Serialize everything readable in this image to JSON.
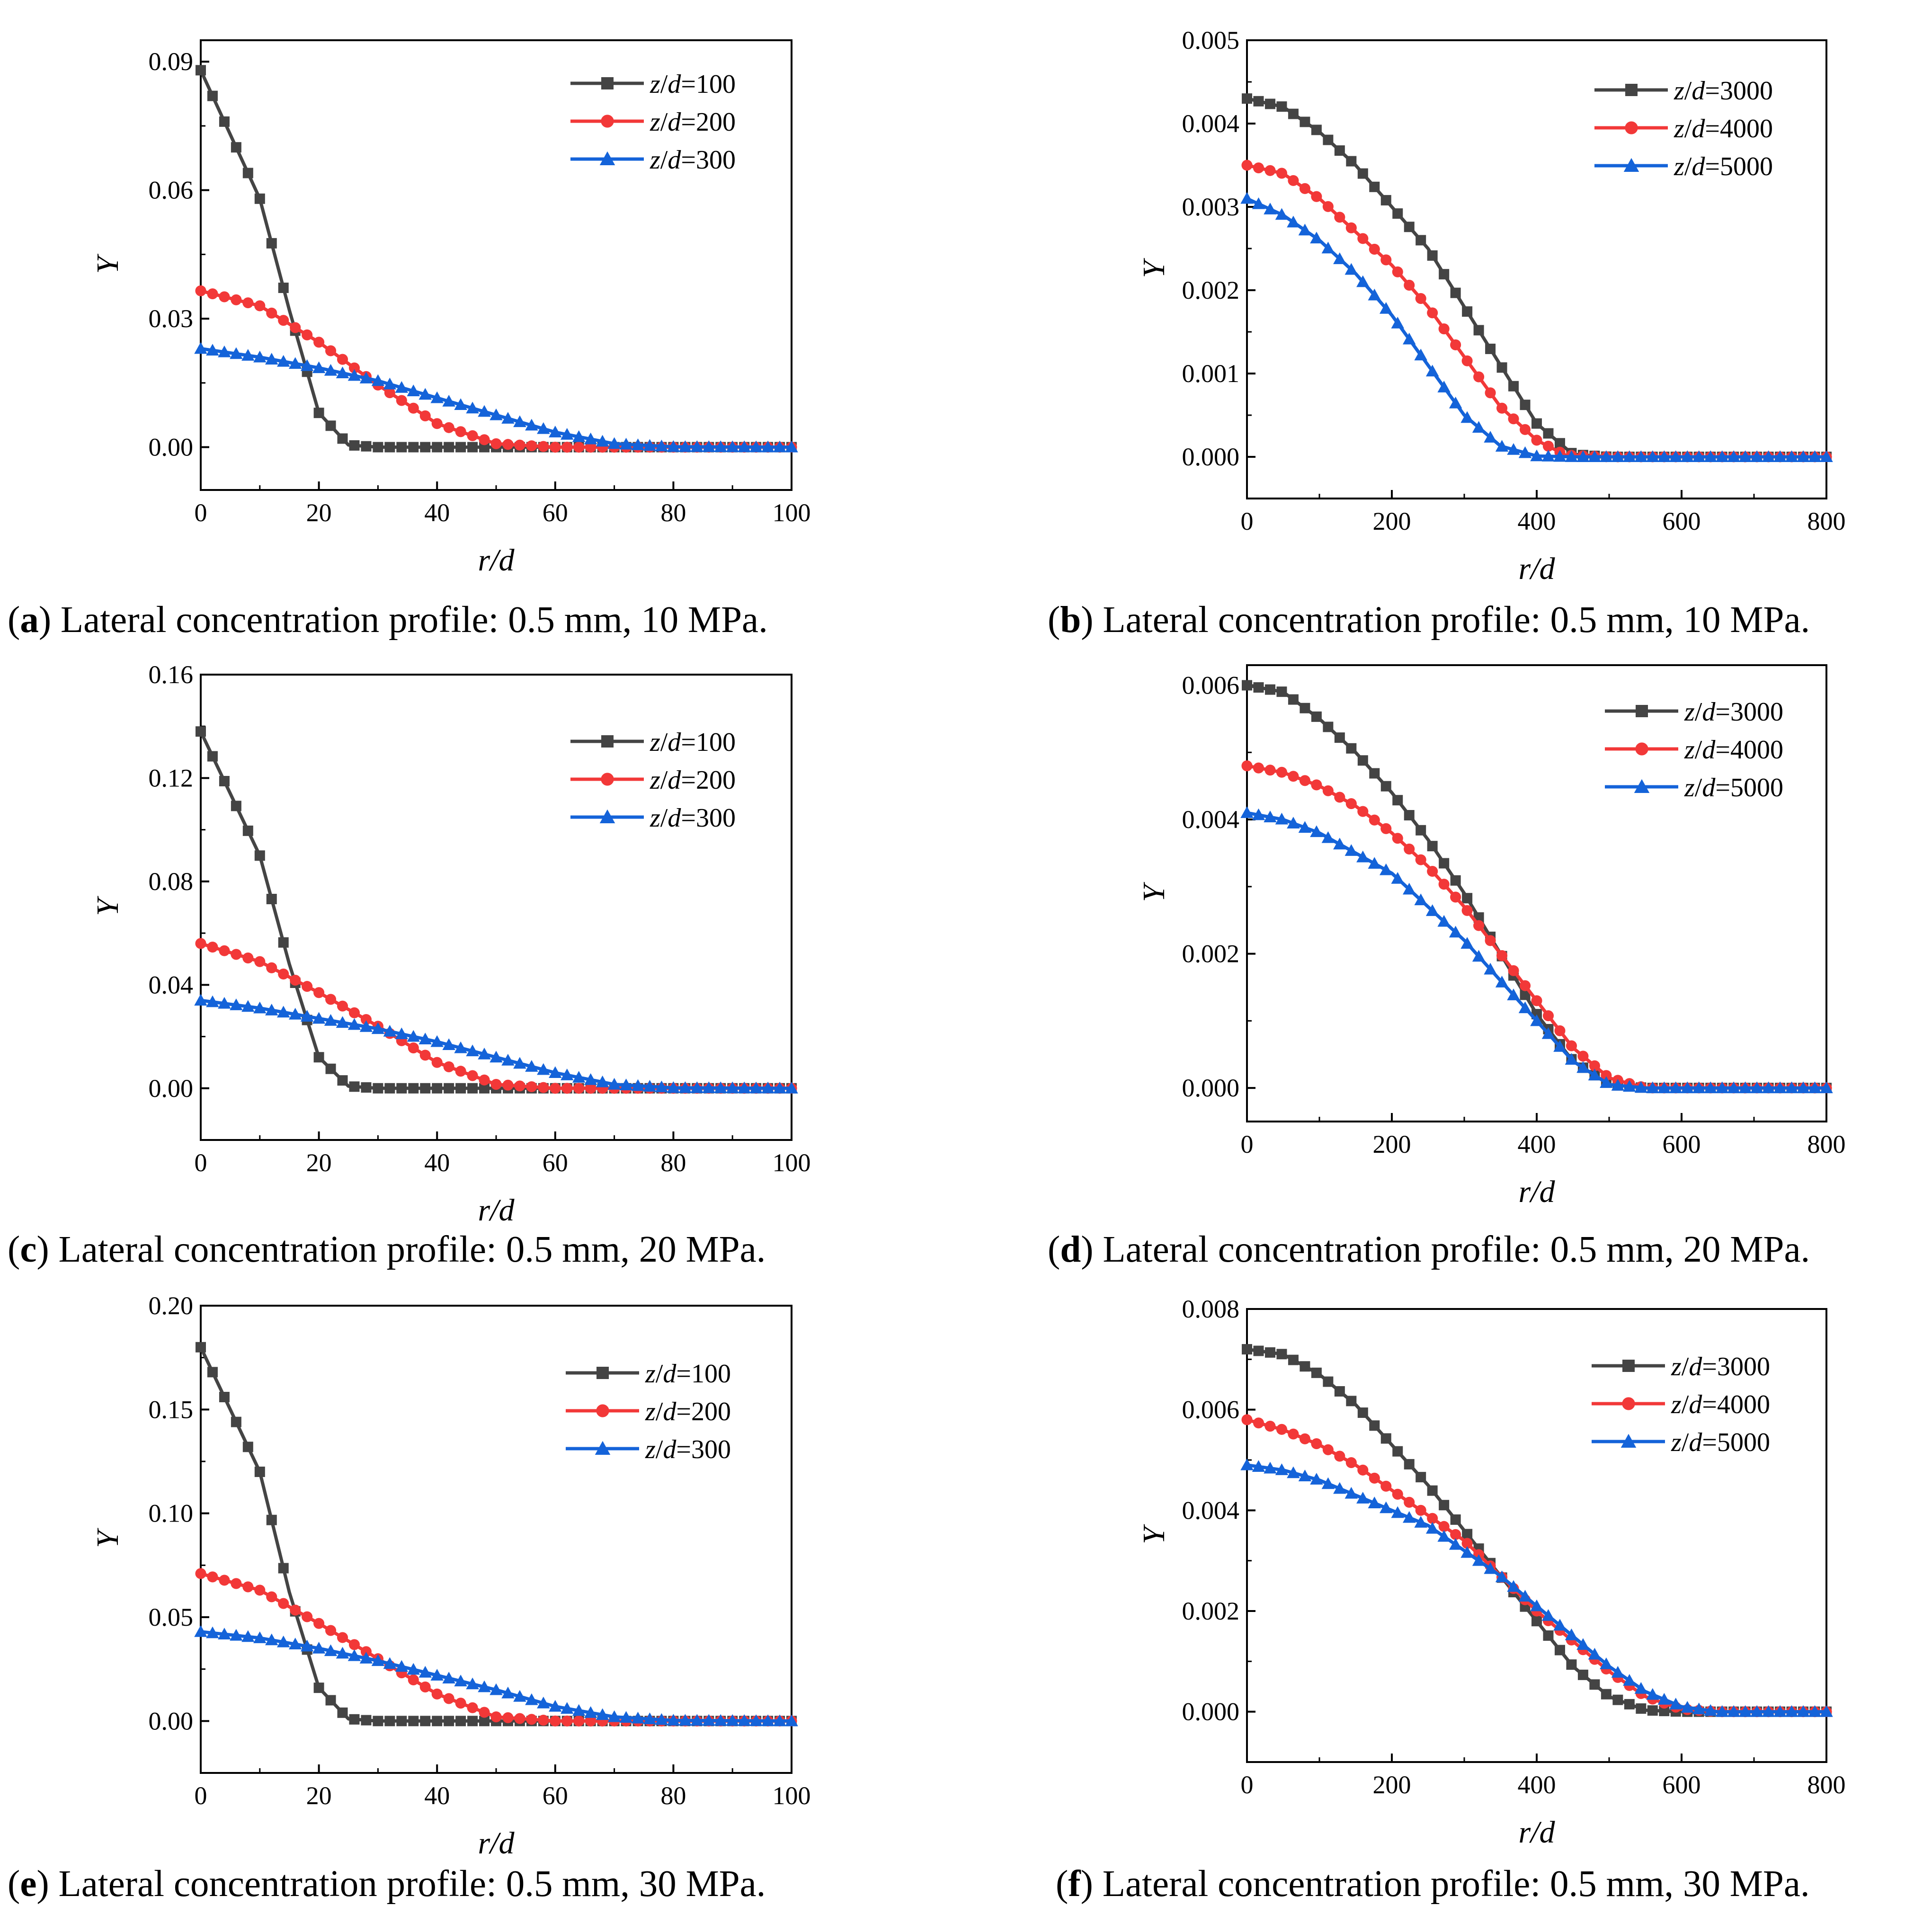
{
  "chart_data": [
    {
      "type": "line",
      "panel": "a",
      "xlabel": "r/d",
      "ylabel": "Y",
      "xlim": [
        0,
        100
      ],
      "ylim": [
        -0.01,
        0.095
      ],
      "xticks": [
        "0",
        "20",
        "40",
        "60",
        "80",
        "100"
      ],
      "yticks": [
        "0.00",
        "0.03",
        "0.06",
        "0.09"
      ],
      "legend_position": "top-right",
      "series": [
        {
          "name": "z/d=100",
          "prefix": "z",
          "value": "100",
          "color": "#444444",
          "marker": "square",
          "x": [
            0,
            10,
            15,
            20,
            25,
            30,
            40,
            60,
            80,
            100
          ],
          "y": [
            0.088,
            0.058,
            0.032,
            0.008,
            0.0005,
            0,
            0,
            0,
            0,
            0
          ]
        },
        {
          "name": "z/d=200",
          "prefix": "z",
          "value": "200",
          "color": "#f23838",
          "marker": "circle",
          "x": [
            0,
            10,
            20,
            30,
            40,
            50,
            60,
            80,
            100
          ],
          "y": [
            0.0365,
            0.033,
            0.0245,
            0.0145,
            0.0055,
            0.0008,
            0,
            0,
            0
          ]
        },
        {
          "name": "z/d=300",
          "prefix": "z",
          "value": "300",
          "color": "#1463d9",
          "marker": "triangle",
          "x": [
            0,
            10,
            20,
            30,
            40,
            50,
            60,
            70,
            80,
            100
          ],
          "y": [
            0.023,
            0.021,
            0.0185,
            0.0155,
            0.0115,
            0.0075,
            0.0035,
            0.0008,
            0.0001,
            0
          ]
        }
      ]
    },
    {
      "type": "line",
      "panel": "b",
      "xlabel": "r/d",
      "ylabel": "Y",
      "xlim": [
        0,
        800
      ],
      "ylim": [
        -0.0005,
        0.005
      ],
      "xticks": [
        "0",
        "200",
        "400",
        "600",
        "800"
      ],
      "yticks": [
        "0.000",
        "0.001",
        "0.002",
        "0.003",
        "0.004",
        "0.005"
      ],
      "legend_position": "top-right",
      "series": [
        {
          "name": "z/d=3000",
          "prefix": "z",
          "value": "3000",
          "color": "#444444",
          "marker": "square",
          "x": [
            0,
            50,
            100,
            150,
            200,
            250,
            300,
            350,
            400,
            450,
            500,
            600,
            800
          ],
          "y": [
            0.0043,
            0.0042,
            0.0039,
            0.0035,
            0.003,
            0.0025,
            0.0018,
            0.0011,
            0.0004,
            3e-05,
            0,
            0,
            0
          ]
        },
        {
          "name": "z/d=4000",
          "prefix": "z",
          "value": "4000",
          "color": "#f23838",
          "marker": "circle",
          "x": [
            0,
            50,
            100,
            150,
            200,
            250,
            300,
            350,
            400,
            440,
            500,
            600,
            800
          ],
          "y": [
            0.0035,
            0.0034,
            0.0031,
            0.0027,
            0.0023,
            0.0018,
            0.0012,
            0.0006,
            0.0002,
            2e-05,
            0,
            0,
            0
          ]
        },
        {
          "name": "z/d=5000",
          "prefix": "z",
          "value": "5000",
          "color": "#1463d9",
          "marker": "triangle",
          "x": [
            0,
            50,
            100,
            150,
            200,
            250,
            300,
            350,
            400,
            450,
            600,
            800
          ],
          "y": [
            0.0031,
            0.0029,
            0.0026,
            0.0022,
            0.0017,
            0.0011,
            0.0005,
            0.00013,
            1e-05,
            0,
            0,
            0
          ]
        }
      ]
    },
    {
      "type": "line",
      "panel": "c",
      "xlabel": "r/d",
      "ylabel": "Y",
      "xlim": [
        0,
        100
      ],
      "ylim": [
        -0.02,
        0.16
      ],
      "xticks": [
        "0",
        "20",
        "40",
        "60",
        "80",
        "100"
      ],
      "yticks": [
        "0.00",
        "0.04",
        "0.08",
        "0.12",
        "0.16"
      ],
      "legend_position": "top-right",
      "series": [
        {
          "name": "z/d=100",
          "prefix": "z",
          "value": "100",
          "color": "#444444",
          "marker": "square",
          "x": [
            0,
            10,
            15,
            20,
            25,
            30,
            40,
            60,
            80,
            100
          ],
          "y": [
            0.138,
            0.09,
            0.048,
            0.012,
            0.0008,
            0,
            0,
            0,
            0,
            0
          ]
        },
        {
          "name": "z/d=200",
          "prefix": "z",
          "value": "200",
          "color": "#f23838",
          "marker": "circle",
          "x": [
            0,
            10,
            20,
            30,
            40,
            50,
            60,
            80,
            100
          ],
          "y": [
            0.056,
            0.049,
            0.037,
            0.024,
            0.01,
            0.0015,
            0,
            0,
            0
          ]
        },
        {
          "name": "z/d=300",
          "prefix": "z",
          "value": "300",
          "color": "#1463d9",
          "marker": "triangle",
          "x": [
            0,
            10,
            20,
            30,
            40,
            50,
            60,
            70,
            80,
            100
          ],
          "y": [
            0.034,
            0.031,
            0.027,
            0.023,
            0.018,
            0.012,
            0.006,
            0.0015,
            0.0002,
            0
          ]
        }
      ]
    },
    {
      "type": "line",
      "panel": "d",
      "xlabel": "r/d",
      "ylabel": "Y",
      "xlim": [
        0,
        800
      ],
      "ylim": [
        -0.0005,
        0.0063
      ],
      "xticks": [
        "0",
        "200",
        "400",
        "600",
        "800"
      ],
      "yticks": [
        "0.000",
        "0.002",
        "0.004",
        "0.006"
      ],
      "legend_position": "top-right",
      "series": [
        {
          "name": "z/d=3000",
          "prefix": "z",
          "value": "3000",
          "color": "#444444",
          "marker": "square",
          "x": [
            0,
            50,
            100,
            150,
            200,
            250,
            300,
            350,
            400,
            450,
            500,
            550,
            600,
            800
          ],
          "y": [
            0.006,
            0.0059,
            0.0055,
            0.005,
            0.0044,
            0.0037,
            0.0029,
            0.002,
            0.0011,
            0.0004,
            5e-05,
            0,
            0,
            0
          ]
        },
        {
          "name": "z/d=4000",
          "prefix": "z",
          "value": "4000",
          "color": "#f23838",
          "marker": "circle",
          "x": [
            0,
            50,
            100,
            150,
            200,
            250,
            300,
            350,
            400,
            450,
            500,
            550,
            600,
            800
          ],
          "y": [
            0.0048,
            0.0047,
            0.0045,
            0.0042,
            0.0038,
            0.0033,
            0.0027,
            0.002,
            0.0013,
            0.0006,
            0.00015,
            0,
            0,
            0
          ]
        },
        {
          "name": "z/d=5000",
          "prefix": "z",
          "value": "5000",
          "color": "#1463d9",
          "marker": "triangle",
          "x": [
            0,
            50,
            100,
            150,
            200,
            250,
            300,
            350,
            400,
            450,
            500,
            550,
            600,
            800
          ],
          "y": [
            0.0041,
            0.004,
            0.0038,
            0.0035,
            0.0032,
            0.0027,
            0.0022,
            0.0016,
            0.001,
            0.0004,
            5e-05,
            0,
            0,
            0
          ]
        }
      ]
    },
    {
      "type": "line",
      "panel": "e",
      "xlabel": "r/d",
      "ylabel": "Y",
      "xlim": [
        0,
        100
      ],
      "ylim": [
        -0.025,
        0.2
      ],
      "xticks": [
        "0",
        "20",
        "40",
        "60",
        "80",
        "100"
      ],
      "yticks": [
        "0.00",
        "0.05",
        "0.10",
        "0.15",
        "0.20"
      ],
      "legend_position": "top-right",
      "series": [
        {
          "name": "z/d=100",
          "prefix": "z",
          "value": "100",
          "color": "#444444",
          "marker": "square",
          "x": [
            0,
            10,
            15,
            20,
            25,
            30,
            40,
            60,
            80,
            100
          ],
          "y": [
            0.18,
            0.12,
            0.062,
            0.016,
            0.001,
            0,
            0,
            0,
            0,
            0
          ]
        },
        {
          "name": "z/d=200",
          "prefix": "z",
          "value": "200",
          "color": "#f23838",
          "marker": "circle",
          "x": [
            0,
            10,
            20,
            30,
            40,
            50,
            60,
            80,
            100
          ],
          "y": [
            0.071,
            0.063,
            0.047,
            0.03,
            0.013,
            0.002,
            0,
            0,
            0
          ]
        },
        {
          "name": "z/d=300",
          "prefix": "z",
          "value": "300",
          "color": "#1463d9",
          "marker": "triangle",
          "x": [
            0,
            10,
            20,
            30,
            40,
            50,
            60,
            70,
            80,
            100
          ],
          "y": [
            0.043,
            0.04,
            0.035,
            0.029,
            0.022,
            0.015,
            0.007,
            0.002,
            0.0003,
            0
          ]
        }
      ]
    },
    {
      "type": "line",
      "panel": "f",
      "xlabel": "r/d",
      "ylabel": "Y",
      "xlim": [
        0,
        800
      ],
      "ylim": [
        -0.001,
        0.008
      ],
      "xticks": [
        "0",
        "200",
        "400",
        "600",
        "800"
      ],
      "yticks": [
        "0.000",
        "0.002",
        "0.004",
        "0.006",
        "0.008"
      ],
      "legend_position": "top-right",
      "series": [
        {
          "name": "z/d=3000",
          "prefix": "z",
          "value": "3000",
          "color": "#444444",
          "marker": "square",
          "x": [
            0,
            50,
            100,
            150,
            200,
            250,
            300,
            350,
            400,
            450,
            500,
            550,
            600,
            800
          ],
          "y": [
            0.0072,
            0.0071,
            0.0067,
            0.0061,
            0.0053,
            0.0045,
            0.0036,
            0.0027,
            0.0018,
            0.0009,
            0.0003,
            3e-05,
            0,
            0
          ]
        },
        {
          "name": "z/d=4000",
          "prefix": "z",
          "value": "4000",
          "color": "#f23838",
          "marker": "circle",
          "x": [
            0,
            50,
            100,
            150,
            200,
            250,
            300,
            350,
            400,
            450,
            500,
            550,
            600,
            650,
            800
          ],
          "y": [
            0.0058,
            0.0056,
            0.0053,
            0.0049,
            0.0044,
            0.0039,
            0.0034,
            0.0027,
            0.002,
            0.0014,
            0.0008,
            0.0003,
            5e-05,
            0,
            0
          ]
        },
        {
          "name": "z/d=5000",
          "prefix": "z",
          "value": "5000",
          "color": "#1463d9",
          "marker": "triangle",
          "x": [
            0,
            50,
            100,
            150,
            200,
            250,
            300,
            350,
            400,
            450,
            500,
            550,
            600,
            650,
            800
          ],
          "y": [
            0.0049,
            0.0048,
            0.0046,
            0.0043,
            0.004,
            0.0037,
            0.0032,
            0.0027,
            0.0021,
            0.0015,
            0.0009,
            0.0004,
            0.0001,
            0,
            0
          ]
        }
      ]
    }
  ],
  "captions": [
    {
      "letter": "a",
      "text": "Lateral concentration profile: 0.5 mm, 10 MPa."
    },
    {
      "letter": "b",
      "text": "Lateral concentration profile: 0.5 mm, 10 MPa."
    },
    {
      "letter": "c",
      "text": "Lateral concentration profile: 0.5 mm, 20 MPa."
    },
    {
      "letter": "d",
      "text": "Lateral concentration profile: 0.5 mm, 20 MPa."
    },
    {
      "letter": "e",
      "text": "Lateral concentration profile: 0.5 mm, 30 MPa."
    },
    {
      "letter": "f",
      "text": "Lateral concentration profile: 0.5 mm, 30 MPa."
    }
  ]
}
